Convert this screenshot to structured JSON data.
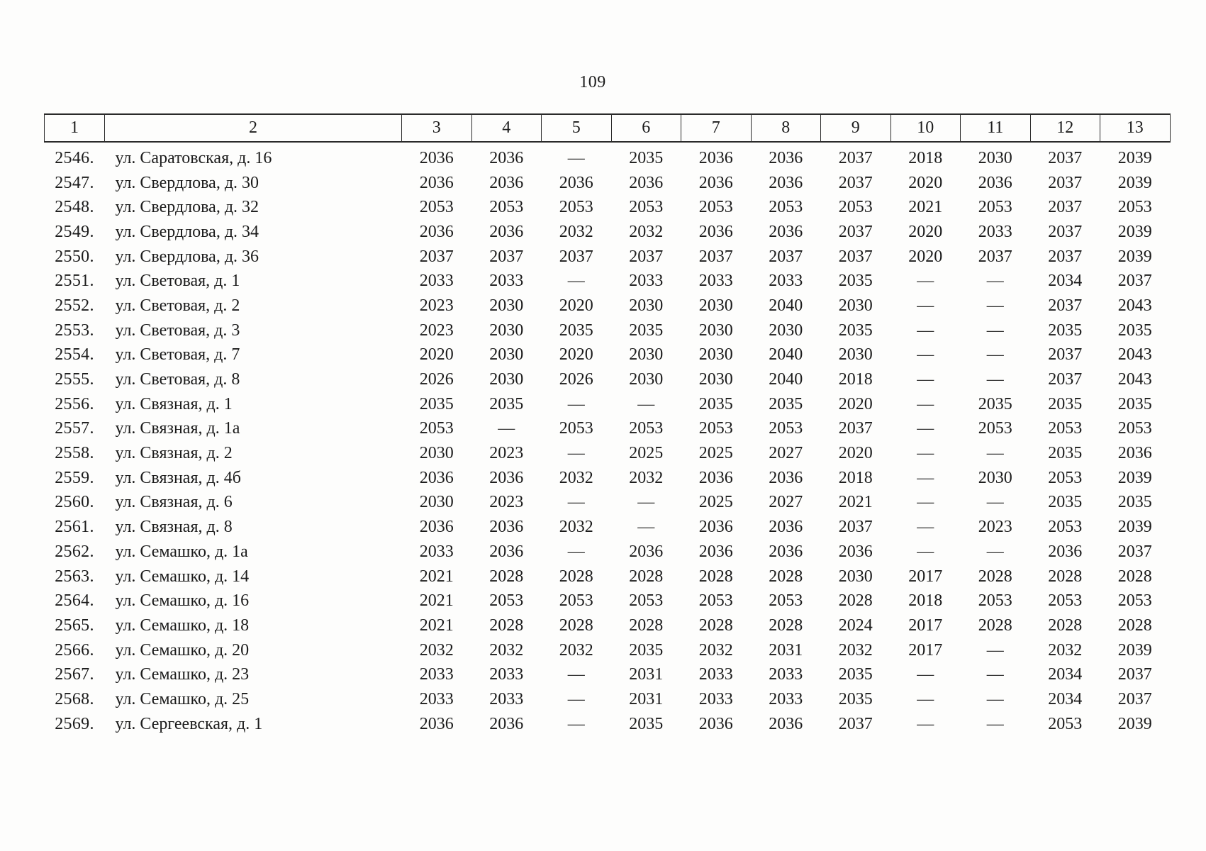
{
  "page": {
    "number": "109"
  },
  "table": {
    "headers": [
      "1",
      "2",
      "3",
      "4",
      "5",
      "6",
      "7",
      "8",
      "9",
      "10",
      "11",
      "12",
      "13"
    ],
    "rows": [
      {
        "num": "2546.",
        "address": "ул. Саратовская, д. 16",
        "values": [
          "2036",
          "2036",
          "—",
          "2035",
          "2036",
          "2036",
          "2037",
          "2018",
          "2030",
          "2037",
          "2039"
        ]
      },
      {
        "num": "2547.",
        "address": "ул. Свердлова, д. 30",
        "values": [
          "2036",
          "2036",
          "2036",
          "2036",
          "2036",
          "2036",
          "2037",
          "2020",
          "2036",
          "2037",
          "2039"
        ]
      },
      {
        "num": "2548.",
        "address": "ул. Свердлова, д. 32",
        "values": [
          "2053",
          "2053",
          "2053",
          "2053",
          "2053",
          "2053",
          "2053",
          "2021",
          "2053",
          "2037",
          "2053"
        ]
      },
      {
        "num": "2549.",
        "address": "ул. Свердлова, д. 34",
        "values": [
          "2036",
          "2036",
          "2032",
          "2032",
          "2036",
          "2036",
          "2037",
          "2020",
          "2033",
          "2037",
          "2039"
        ]
      },
      {
        "num": "2550.",
        "address": "ул. Свердлова, д. 36",
        "values": [
          "2037",
          "2037",
          "2037",
          "2037",
          "2037",
          "2037",
          "2037",
          "2020",
          "2037",
          "2037",
          "2039"
        ]
      },
      {
        "num": "2551.",
        "address": "ул. Световая, д. 1",
        "values": [
          "2033",
          "2033",
          "—",
          "2033",
          "2033",
          "2033",
          "2035",
          "—",
          "—",
          "2034",
          "2037"
        ]
      },
      {
        "num": "2552.",
        "address": "ул. Световая, д. 2",
        "values": [
          "2023",
          "2030",
          "2020",
          "2030",
          "2030",
          "2040",
          "2030",
          "—",
          "—",
          "2037",
          "2043"
        ]
      },
      {
        "num": "2553.",
        "address": "ул. Световая, д. 3",
        "values": [
          "2023",
          "2030",
          "2035",
          "2035",
          "2030",
          "2030",
          "2035",
          "—",
          "—",
          "2035",
          "2035"
        ]
      },
      {
        "num": "2554.",
        "address": "ул. Световая, д. 7",
        "values": [
          "2020",
          "2030",
          "2020",
          "2030",
          "2030",
          "2040",
          "2030",
          "—",
          "—",
          "2037",
          "2043"
        ]
      },
      {
        "num": "2555.",
        "address": "ул. Световая, д. 8",
        "values": [
          "2026",
          "2030",
          "2026",
          "2030",
          "2030",
          "2040",
          "2018",
          "—",
          "—",
          "2037",
          "2043"
        ]
      },
      {
        "num": "2556.",
        "address": "ул. Связная, д. 1",
        "values": [
          "2035",
          "2035",
          "—",
          "—",
          "2035",
          "2035",
          "2020",
          "—",
          "2035",
          "2035",
          "2035"
        ]
      },
      {
        "num": "2557.",
        "address": "ул. Связная, д. 1а",
        "values": [
          "2053",
          "—",
          "2053",
          "2053",
          "2053",
          "2053",
          "2037",
          "—",
          "2053",
          "2053",
          "2053"
        ]
      },
      {
        "num": "2558.",
        "address": "ул. Связная, д. 2",
        "values": [
          "2030",
          "2023",
          "—",
          "2025",
          "2025",
          "2027",
          "2020",
          "—",
          "—",
          "2035",
          "2036"
        ]
      },
      {
        "num": "2559.",
        "address": "ул. Связная, д. 4б",
        "values": [
          "2036",
          "2036",
          "2032",
          "2032",
          "2036",
          "2036",
          "2018",
          "—",
          "2030",
          "2053",
          "2039"
        ]
      },
      {
        "num": "2560.",
        "address": "ул. Связная, д. 6",
        "values": [
          "2030",
          "2023",
          "—",
          "—",
          "2025",
          "2027",
          "2021",
          "—",
          "—",
          "2035",
          "2035"
        ]
      },
      {
        "num": "2561.",
        "address": "ул. Связная, д. 8",
        "values": [
          "2036",
          "2036",
          "2032",
          "—",
          "2036",
          "2036",
          "2037",
          "—",
          "2023",
          "2053",
          "2039"
        ]
      },
      {
        "num": "2562.",
        "address": "ул. Семашко, д. 1а",
        "values": [
          "2033",
          "2036",
          "—",
          "2036",
          "2036",
          "2036",
          "2036",
          "—",
          "—",
          "2036",
          "2037"
        ]
      },
      {
        "num": "2563.",
        "address": "ул. Семашко, д. 14",
        "values": [
          "2021",
          "2028",
          "2028",
          "2028",
          "2028",
          "2028",
          "2030",
          "2017",
          "2028",
          "2028",
          "2028"
        ]
      },
      {
        "num": "2564.",
        "address": "ул. Семашко, д. 16",
        "values": [
          "2021",
          "2053",
          "2053",
          "2053",
          "2053",
          "2053",
          "2028",
          "2018",
          "2053",
          "2053",
          "2053"
        ]
      },
      {
        "num": "2565.",
        "address": "ул. Семашко, д. 18",
        "values": [
          "2021",
          "2028",
          "2028",
          "2028",
          "2028",
          "2028",
          "2024",
          "2017",
          "2028",
          "2028",
          "2028"
        ]
      },
      {
        "num": "2566.",
        "address": "ул. Семашко, д. 20",
        "values": [
          "2032",
          "2032",
          "2032",
          "2035",
          "2032",
          "2031",
          "2032",
          "2017",
          "—",
          "2032",
          "2039"
        ]
      },
      {
        "num": "2567.",
        "address": "ул. Семашко, д. 23",
        "values": [
          "2033",
          "2033",
          "—",
          "2031",
          "2033",
          "2033",
          "2035",
          "—",
          "—",
          "2034",
          "2037"
        ]
      },
      {
        "num": "2568.",
        "address": "ул. Семашко, д. 25",
        "values": [
          "2033",
          "2033",
          "—",
          "2031",
          "2033",
          "2033",
          "2035",
          "—",
          "—",
          "2034",
          "2037"
        ]
      },
      {
        "num": "2569.",
        "address": "ул. Сергеевская, д. 1",
        "values": [
          "2036",
          "2036",
          "—",
          "2035",
          "2036",
          "2036",
          "2037",
          "—",
          "—",
          "2053",
          "2039"
        ]
      }
    ]
  }
}
